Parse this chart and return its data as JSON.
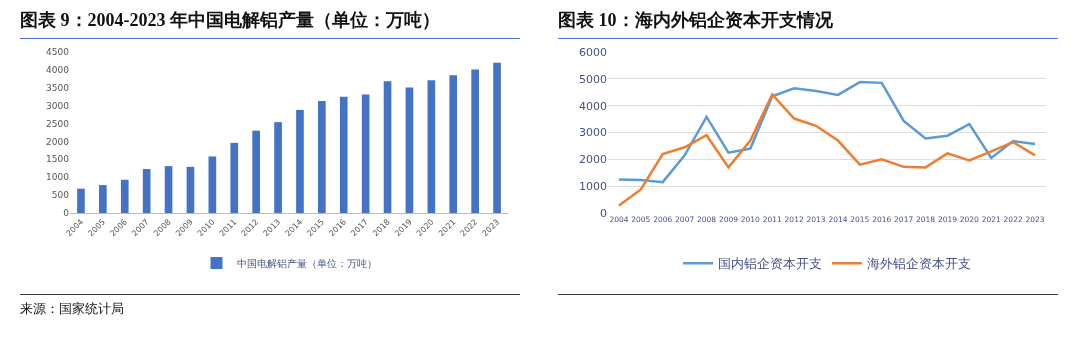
{
  "chart_data": [
    {
      "type": "bar",
      "title": "图表 9：2004-2023 年中国电解铝产量（单位：万吨）",
      "categories": [
        "2004",
        "2005",
        "2006",
        "2007",
        "2008",
        "2009",
        "2010",
        "2011",
        "2012",
        "2013",
        "2014",
        "2015",
        "2016",
        "2017",
        "2018",
        "2019",
        "2020",
        "2021",
        "2022",
        "2023"
      ],
      "series": [
        {
          "name": "中国电解铝产量（单位：万吨）",
          "color": "#4472c4",
          "values": [
            680,
            780,
            930,
            1230,
            1310,
            1290,
            1580,
            1960,
            2300,
            2540,
            2880,
            3130,
            3250,
            3310,
            3680,
            3510,
            3710,
            3850,
            4010,
            4200
          ]
        }
      ],
      "ylim": [
        0,
        4500
      ],
      "yticks": [
        0,
        500,
        1000,
        1500,
        2000,
        2500,
        3000,
        3500,
        4000,
        4500
      ],
      "grid": false,
      "legend": "bottom",
      "annotations": [
        "来源：国家统计局"
      ]
    },
    {
      "type": "line",
      "title": "图表 10：海内外铝企资本开支情况",
      "categories": [
        "2004",
        "2005",
        "2006",
        "2007",
        "2008",
        "2009",
        "2010",
        "2011",
        "2012",
        "2013",
        "2014",
        "2015",
        "2016",
        "2017",
        "2018",
        "2019",
        "2020",
        "2021",
        "2022",
        "2023"
      ],
      "series": [
        {
          "name": "国内铝企资本开支",
          "color": "#5b9bd5",
          "values": [
            1250,
            1230,
            1150,
            2150,
            3580,
            2250,
            2400,
            4350,
            4650,
            4550,
            4400,
            4880,
            4850,
            3430,
            2780,
            2880,
            3310,
            2050,
            2680,
            2570
          ]
        },
        {
          "name": "海外铝企资本开支",
          "color": "#ed7d31",
          "values": [
            280,
            880,
            2200,
            2450,
            2900,
            1700,
            2700,
            4420,
            3520,
            3250,
            2700,
            1800,
            2000,
            1720,
            1700,
            2220,
            1960,
            2300,
            2640,
            2150
          ]
        }
      ],
      "ylim": [
        0,
        6000
      ],
      "yticks": [
        0,
        1000,
        2000,
        3000,
        4000,
        5000,
        6000
      ],
      "grid": "y",
      "legend": "bottom",
      "marker": "none",
      "line_style": "solid"
    }
  ]
}
